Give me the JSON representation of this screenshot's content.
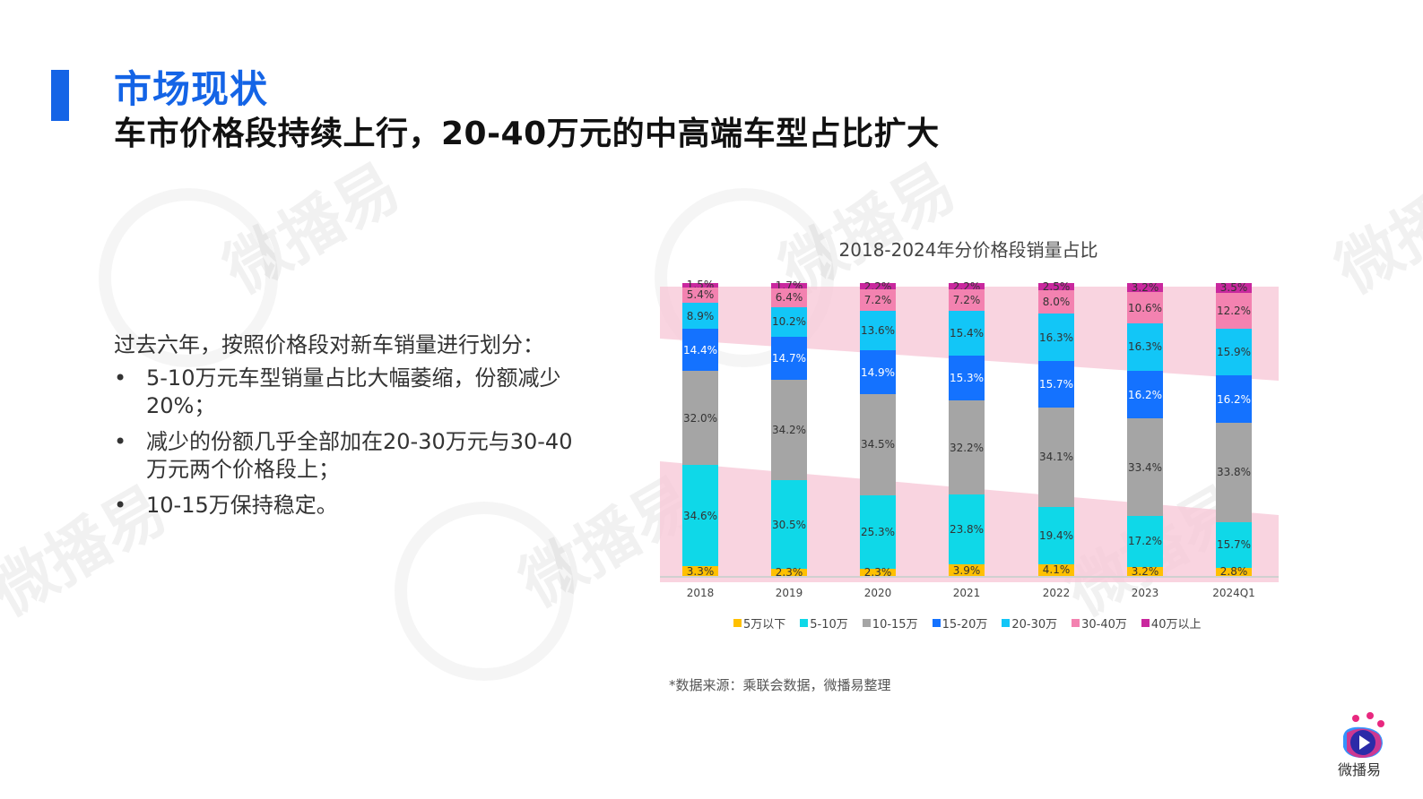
{
  "header": {
    "title": "市场现状",
    "subtitle": "车市价格段持续上行，20-40万元的中高端车型占比扩大",
    "accent_color": "#1464e6"
  },
  "body": {
    "intro": "过去六年，按照价格段对新车销量进行划分：",
    "bullets": [
      {
        "marker": "•",
        "text": "5-10万元车型销量占比大幅萎缩，份额减少20%；"
      },
      {
        "marker": "•",
        "text": "减少的份额几乎全部加在20-30万元与30-40万元两个价格段上；"
      },
      {
        "marker": "•",
        "text": "10-15万保持稳定。"
      }
    ]
  },
  "chart_data": {
    "type": "bar",
    "stacked": true,
    "title": "2018-2024年分价格段销量占比",
    "xlabel": "",
    "ylabel": "",
    "ylim": [
      0,
      100
    ],
    "grid": false,
    "legend_position": "bottom",
    "categories": [
      "2018",
      "2019",
      "2020",
      "2021",
      "2022",
      "2023",
      "2024Q1"
    ],
    "series": [
      {
        "name": "5万以下",
        "color": "#ffc000",
        "values": [
          3.3,
          2.3,
          2.3,
          3.9,
          4.1,
          3.2,
          2.8
        ],
        "labels": [
          "3.3%",
          "2.3%",
          "2.3%",
          "3.9%",
          "4.1%",
          "3.2%",
          "2.8%"
        ]
      },
      {
        "name": "5-10万",
        "color": "#0fd8e8",
        "values": [
          34.6,
          30.5,
          25.3,
          23.8,
          19.4,
          17.2,
          15.7
        ],
        "labels": [
          "34.6%",
          "30.5%",
          "25.3%",
          "23.8%",
          "19.4%",
          "17.2%",
          "15.7%"
        ]
      },
      {
        "name": "10-15万",
        "color": "#a5a5a5",
        "values": [
          32.0,
          34.2,
          34.5,
          32.2,
          34.1,
          33.4,
          33.8
        ],
        "labels": [
          "32.0%",
          "34.2%",
          "34.5%",
          "32.2%",
          "34.1%",
          "33.4%",
          "33.8%"
        ]
      },
      {
        "name": "15-20万",
        "color": "#1472ff",
        "values": [
          14.4,
          14.7,
          14.9,
          15.3,
          15.7,
          16.2,
          16.2
        ],
        "labels": [
          "14.4%",
          "14.7%",
          "14.9%",
          "15.3%",
          "15.7%",
          "16.2%",
          "16.2%"
        ]
      },
      {
        "name": "20-30万",
        "color": "#12c6f7",
        "values": [
          8.9,
          10.2,
          13.6,
          15.4,
          16.3,
          16.3,
          15.9
        ],
        "labels": [
          "8.9%",
          "10.2%",
          "13.6%",
          "15.4%",
          "16.3%",
          "16.3%",
          "15.9%"
        ]
      },
      {
        "name": "30-40万",
        "color": "#f382b0",
        "values": [
          5.4,
          6.4,
          7.2,
          7.2,
          8.0,
          10.6,
          12.2
        ],
        "labels": [
          "5.4%",
          "6.4%",
          "7.2%",
          "7.2%",
          "8.0%",
          "10.6%",
          "12.2%"
        ]
      },
      {
        "name": "40万以上",
        "color": "#c9289e",
        "values": [
          1.5,
          1.7,
          2.2,
          2.2,
          2.5,
          3.2,
          3.5
        ],
        "labels": [
          "1.5%",
          "1.7%",
          "2.2%",
          "2.2%",
          "2.5%",
          "3.2%",
          "3.5%"
        ]
      }
    ],
    "annotations": [
      {
        "type": "highlight-band",
        "description": "Pink band highlighting 20-40万 segments trending up",
        "color": "#f7c6d6"
      },
      {
        "type": "highlight-band",
        "description": "Pink band highlighting 5-10万 segment trending down",
        "color": "#f7c6d6"
      }
    ]
  },
  "source": "*数据来源：乘联会数据，微播易整理",
  "logo": {
    "text": "微播易",
    "icon": "play-logo-icon"
  },
  "watermark": {
    "text": "微播易"
  }
}
